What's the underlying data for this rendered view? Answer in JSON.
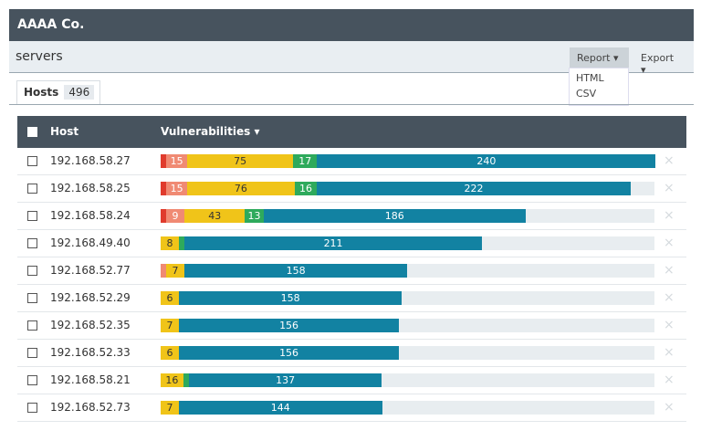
{
  "company": "AAAA Co.",
  "page_title": "servers",
  "buttons": {
    "report": "Report",
    "export": "Export"
  },
  "dropdown": {
    "items": [
      "HTML",
      "CSV"
    ]
  },
  "tabs": [
    {
      "label": "Hosts",
      "count": "496"
    }
  ],
  "table": {
    "columns": [
      "Host",
      "Vulnerabilities"
    ],
    "severity_colors": [
      "#e03b2d",
      "#f08a73",
      "#f0c419",
      "#2eaa5c",
      "#1282a2"
    ],
    "rows": [
      {
        "host": "192.168.58.27",
        "values": [
          3,
          15,
          75,
          17,
          240
        ]
      },
      {
        "host": "192.168.58.25",
        "values": [
          3,
          15,
          76,
          16,
          222
        ]
      },
      {
        "host": "192.168.58.24",
        "values": [
          3,
          9,
          43,
          13,
          186
        ]
      },
      {
        "host": "192.168.49.40",
        "values": [
          0,
          0,
          8,
          2,
          211
        ]
      },
      {
        "host": "192.168.52.77",
        "values": [
          0,
          2,
          7,
          0,
          158
        ]
      },
      {
        "host": "192.168.52.29",
        "values": [
          0,
          0,
          6,
          0,
          158
        ]
      },
      {
        "host": "192.168.52.35",
        "values": [
          0,
          0,
          7,
          0,
          156
        ]
      },
      {
        "host": "192.168.52.33",
        "values": [
          0,
          0,
          6,
          0,
          156
        ]
      },
      {
        "host": "192.168.58.21",
        "values": [
          0,
          0,
          16,
          2,
          137
        ]
      },
      {
        "host": "192.168.52.73",
        "values": [
          0,
          0,
          7,
          0,
          144
        ]
      }
    ]
  }
}
